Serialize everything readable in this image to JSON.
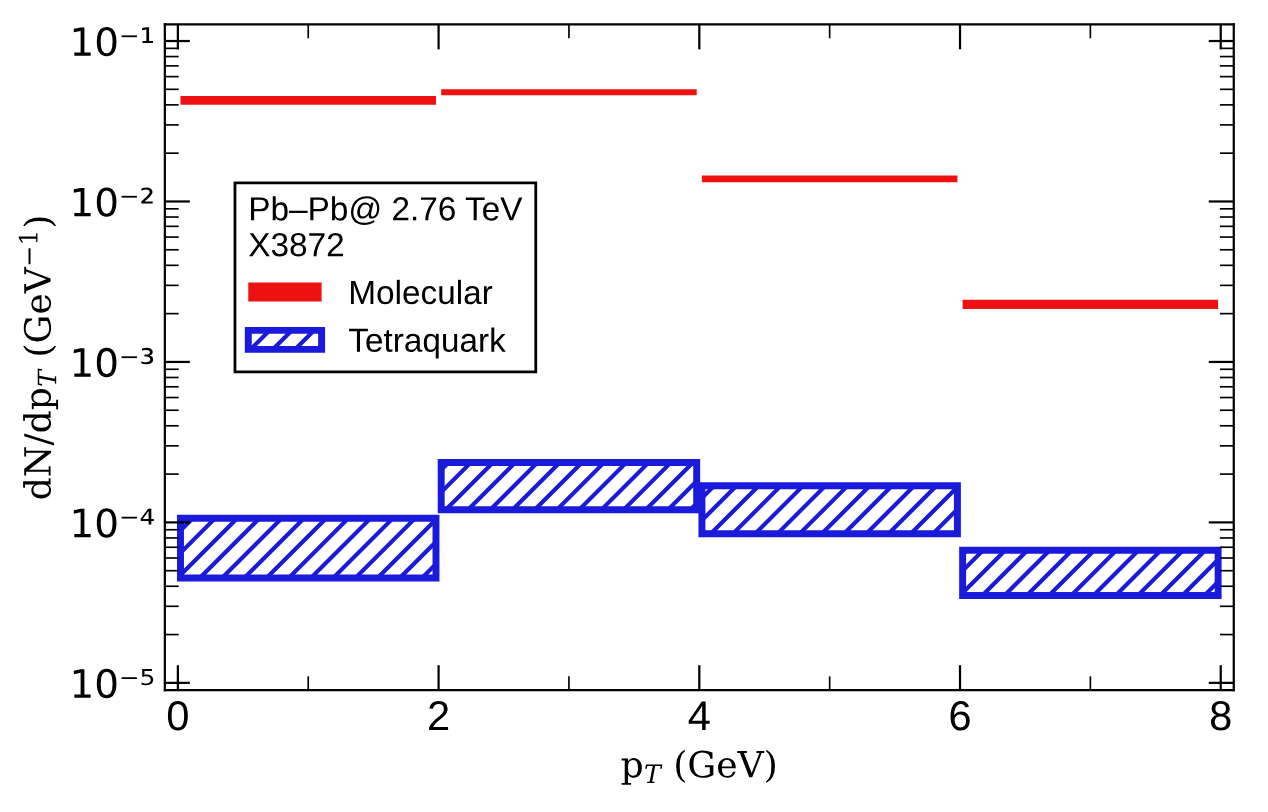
{
  "chart_data": {
    "type": "bar",
    "xlabel": "p$_{T}$ (GeV)",
    "ylabel": "dN/dp$_{T}$ (GeV$^{−1}$)",
    "legend_title": "Pb–Pb@ 2.76 TeV\nX3872",
    "x": [
      1,
      3,
      5,
      7
    ],
    "series": [
      {
        "name": "Molecular",
        "color": "#ee1111",
        "base": [
          0.04,
          0.046,
          0.0132,
          0.00214
        ],
        "values": [
          0.0054,
          0.004,
          0.0013,
          0.0003
        ]
      },
      {
        "name": "Tetraquark",
        "color": "#1a1adb",
        "base": [
          4.5e-05,
          0.00012,
          8.5e-05,
          3.5e-05
        ],
        "values": [
          6.1e-05,
          0.000116,
          8.4e-05,
          3.2e-05
        ]
      }
    ],
    "log": "y",
    "xlim": [
      -0.1,
      8.1
    ],
    "ylim": [
      9e-06,
      0.127
    ],
    "xticks": [
      0,
      {
        "value": 1,
        "label": null
      },
      2,
      {
        "value": 3,
        "label": null
      },
      4,
      {
        "value": 5,
        "label": null
      },
      6,
      {
        "value": 7,
        "label": null
      },
      8
    ],
    "yticks": [
      {
        "value": 1e-05,
        "label": "10⁻⁵"
      },
      {
        "value": 0.0001,
        "label": "10⁻⁴"
      },
      {
        "value": 0.001,
        "label": "10⁻³"
      },
      {
        "value": 0.01,
        "label": "10⁻²"
      },
      {
        "value": 0.1,
        "label": "10⁻¹"
      }
    ],
    "grid": false,
    "legend": "left"
  }
}
